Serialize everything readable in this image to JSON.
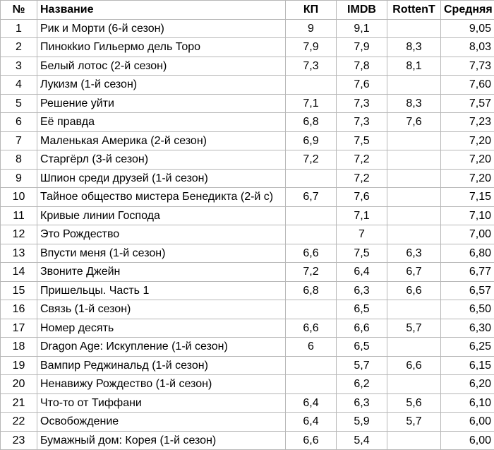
{
  "table": {
    "headers": {
      "num": "№",
      "title": "Название",
      "kp": "КП",
      "imdb": "IMDB",
      "rt": "RottenT",
      "avg": "Средняя"
    },
    "rows": [
      {
        "num": "1",
        "title": "Рик и Морти (6-й сезон)",
        "kp": "9",
        "imdb": "9,1",
        "rt": "",
        "avg": "9,05"
      },
      {
        "num": "2",
        "title": "Пинокkио Гильермо дель Торо",
        "kp": "7,9",
        "imdb": "7,9",
        "rt": "8,3",
        "avg": "8,03"
      },
      {
        "num": "3",
        "title": "Белый лотос (2-й сезон)",
        "kp": "7,3",
        "imdb": "7,8",
        "rt": "8,1",
        "avg": "7,73"
      },
      {
        "num": "4",
        "title": "Лукизм (1-й сезон)",
        "kp": "",
        "imdb": "7,6",
        "rt": "",
        "avg": "7,60"
      },
      {
        "num": "5",
        "title": "Решение уйти",
        "kp": "7,1",
        "imdb": "7,3",
        "rt": "8,3",
        "avg": "7,57"
      },
      {
        "num": "6",
        "title": "Её правда",
        "kp": "6,8",
        "imdb": "7,3",
        "rt": "7,6",
        "avg": "7,23"
      },
      {
        "num": "7",
        "title": "Маленькая Америка (2-й сезон)",
        "kp": "6,9",
        "imdb": "7,5",
        "rt": "",
        "avg": "7,20"
      },
      {
        "num": "8",
        "title": "Старгёрл (3-й сезон)",
        "kp": "7,2",
        "imdb": "7,2",
        "rt": "",
        "avg": "7,20"
      },
      {
        "num": "9",
        "title": "Шпион среди друзей (1-й сезон)",
        "kp": "",
        "imdb": "7,2",
        "rt": "",
        "avg": "7,20"
      },
      {
        "num": "10",
        "title": "Тайное общество мистера Бенедикта (2-й с)",
        "kp": "6,7",
        "imdb": "7,6",
        "rt": "",
        "avg": "7,15"
      },
      {
        "num": "11",
        "title": "Кривые линии Господа",
        "kp": "",
        "imdb": "7,1",
        "rt": "",
        "avg": "7,10"
      },
      {
        "num": "12",
        "title": "Это Рождество",
        "kp": "",
        "imdb": "7",
        "rt": "",
        "avg": "7,00"
      },
      {
        "num": "13",
        "title": "Впусти меня (1-й сезон)",
        "kp": "6,6",
        "imdb": "7,5",
        "rt": "6,3",
        "avg": "6,80"
      },
      {
        "num": "14",
        "title": "Звоните Джейн",
        "kp": "7,2",
        "imdb": "6,4",
        "rt": "6,7",
        "avg": "6,77"
      },
      {
        "num": "15",
        "title": "Пришельцы. Часть 1",
        "kp": "6,8",
        "imdb": "6,3",
        "rt": "6,6",
        "avg": "6,57"
      },
      {
        "num": "16",
        "title": "Связь (1-й сезон)",
        "kp": "",
        "imdb": "6,5",
        "rt": "",
        "avg": "6,50"
      },
      {
        "num": "17",
        "title": "Номер десять",
        "kp": "6,6",
        "imdb": "6,6",
        "rt": "5,7",
        "avg": "6,30"
      },
      {
        "num": "18",
        "title": "Dragon Age: Искупление (1-й сезон)",
        "kp": "6",
        "imdb": "6,5",
        "rt": "",
        "avg": "6,25"
      },
      {
        "num": "19",
        "title": "Вампир Реджинальд (1-й сезон)",
        "kp": "",
        "imdb": "5,7",
        "rt": "6,6",
        "avg": "6,15"
      },
      {
        "num": "20",
        "title": "Ненавижу Рождество (1-й сезон)",
        "kp": "",
        "imdb": "6,2",
        "rt": "",
        "avg": "6,20"
      },
      {
        "num": "21",
        "title": "Что-то от Тиффани",
        "kp": "6,4",
        "imdb": "6,3",
        "rt": "5,6",
        "avg": "6,10"
      },
      {
        "num": "22",
        "title": "Освобождение",
        "kp": "6,4",
        "imdb": "5,9",
        "rt": "5,7",
        "avg": "6,00"
      },
      {
        "num": "23",
        "title": "Бумажный дом: Корея (1-й сезон)",
        "kp": "6,6",
        "imdb": "5,4",
        "rt": "",
        "avg": "6,00"
      }
    ]
  }
}
